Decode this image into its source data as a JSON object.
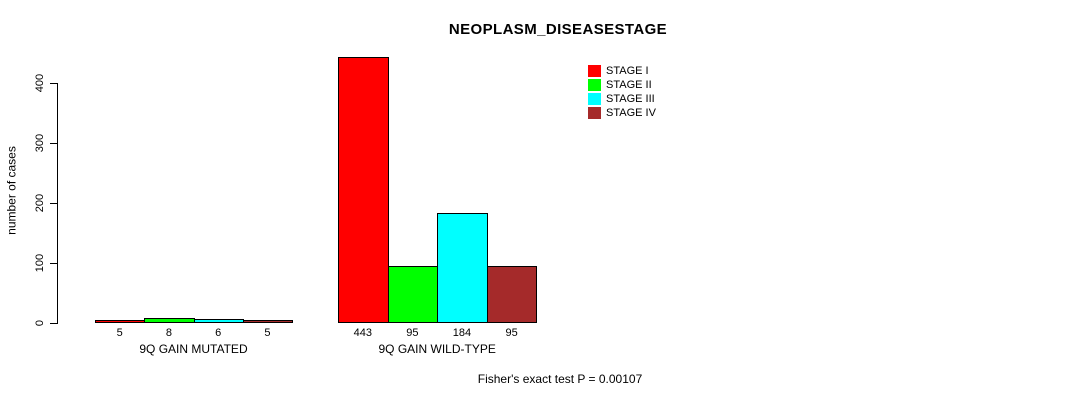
{
  "chart_data": {
    "type": "bar",
    "title": "NEOPLASM_DISEASESTAGE",
    "xlabel": "",
    "ylabel": "number of cases",
    "groups": [
      "9Q GAIN MUTATED",
      "9Q GAIN WILD-TYPE"
    ],
    "series": [
      {
        "name": "STAGE I",
        "color": "#FF0000",
        "values": [
          5,
          443
        ]
      },
      {
        "name": "STAGE II",
        "color": "#00FF00",
        "values": [
          8,
          95
        ]
      },
      {
        "name": "STAGE III",
        "color": "#00FFFF",
        "values": [
          6,
          184
        ]
      },
      {
        "name": "STAGE IV",
        "color": "#A52A2A",
        "values": [
          5,
          95
        ]
      }
    ],
    "yticks": [
      0,
      100,
      200,
      300,
      400
    ],
    "ylim": [
      0,
      450
    ],
    "grid": false,
    "bar_value_labels_shown": true,
    "legend_position": "top-right",
    "annotation": "Fisher's exact test P = 0.00107"
  },
  "colors": {
    "background": "#FFFFFF",
    "axis": "#000000",
    "text": "#000000",
    "stage_i": "#FF0000",
    "stage_ii": "#00FF00",
    "stage_iii": "#00FFFF",
    "stage_iv": "#A52A2A"
  }
}
